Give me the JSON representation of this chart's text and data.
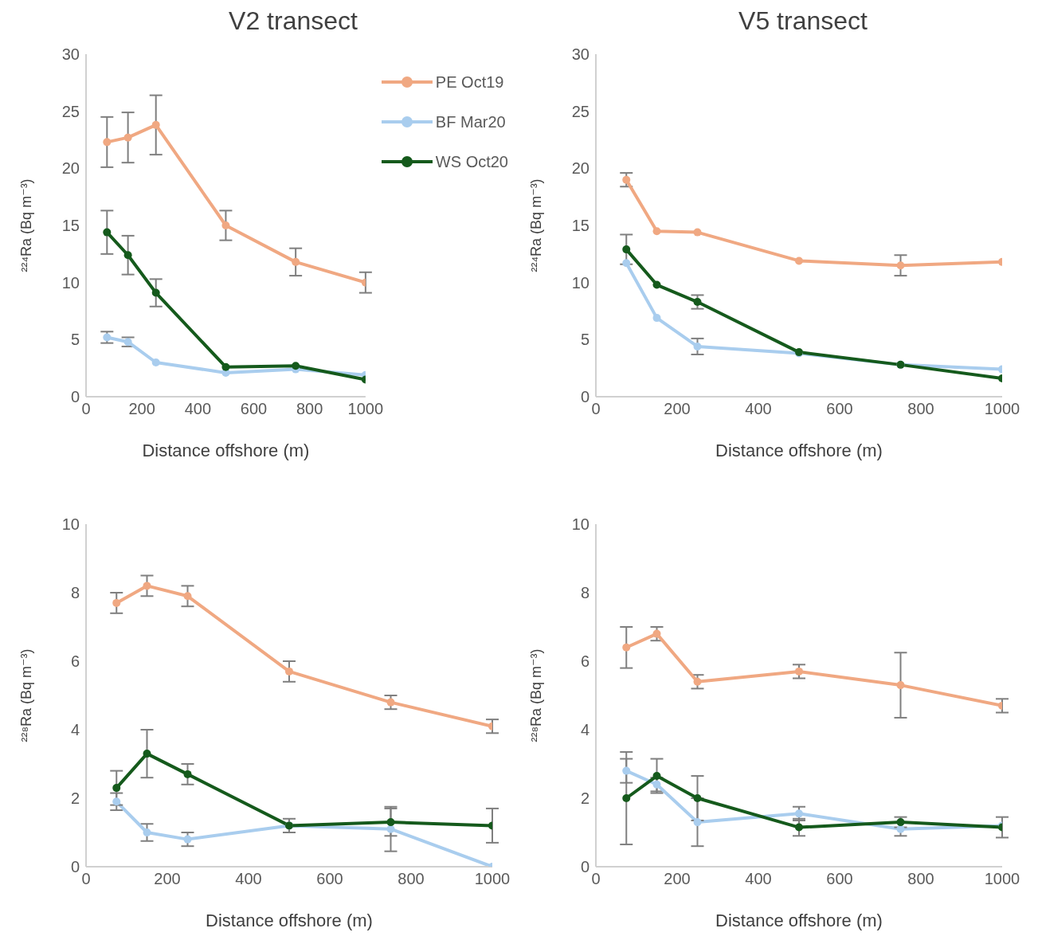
{
  "chart_data": [
    {
      "type": "line",
      "title": "V2 transect",
      "xlabel": "Distance offshore (m)",
      "ylabel": "²²⁴Ra (Bq m⁻³)",
      "x": [
        75,
        150,
        250,
        500,
        750,
        1000
      ],
      "xlim": [
        0,
        1000
      ],
      "xticks": [
        0,
        200,
        400,
        600,
        800,
        1000
      ],
      "ylim": [
        0,
        30
      ],
      "yticks": [
        0,
        5,
        10,
        15,
        20,
        25,
        30
      ],
      "marker": "circle",
      "grid": false,
      "legend": "top right",
      "series": [
        {
          "name": "PE Oct19",
          "color": "#f0a882",
          "values": [
            22.3,
            22.7,
            23.8,
            15.0,
            11.8,
            10.0
          ],
          "errors": [
            2.2,
            2.2,
            2.6,
            1.3,
            1.2,
            0.9
          ]
        },
        {
          "name": "BF Mar20",
          "color": "#a9cdee",
          "values": [
            5.2,
            4.8,
            3.0,
            2.1,
            2.4,
            1.9
          ],
          "errors": [
            0.5,
            0.4,
            null,
            null,
            null,
            null
          ]
        },
        {
          "name": "WS Oct20",
          "color": "#155a1c",
          "values": [
            14.4,
            12.4,
            9.1,
            2.6,
            2.7,
            1.5
          ],
          "errors": [
            1.9,
            1.7,
            1.2,
            null,
            null,
            null
          ]
        }
      ]
    },
    {
      "type": "line",
      "title": "V5 transect",
      "xlabel": "Distance offshore (m)",
      "ylabel": "²²⁴Ra (Bq m⁻³)",
      "x": [
        75,
        150,
        250,
        500,
        750,
        1000
      ],
      "xlim": [
        0,
        1000
      ],
      "xticks": [
        0,
        200,
        400,
        600,
        800,
        1000
      ],
      "ylim": [
        0,
        30
      ],
      "yticks": [
        0,
        5,
        10,
        15,
        20,
        25,
        30
      ],
      "marker": "circle",
      "grid": false,
      "series": [
        {
          "color": "#f0a882",
          "values": [
            19.0,
            14.5,
            14.4,
            11.9,
            11.5,
            11.8
          ],
          "errors": [
            0.6,
            null,
            null,
            null,
            0.9,
            null
          ]
        },
        {
          "color": "#a9cdee",
          "values": [
            11.7,
            6.9,
            4.4,
            3.8,
            2.8,
            2.4
          ],
          "errors": [
            null,
            null,
            0.7,
            null,
            null,
            null
          ]
        },
        {
          "color": "#155a1c",
          "values": [
            12.9,
            9.8,
            8.3,
            3.9,
            2.8,
            1.6
          ],
          "errors": [
            1.3,
            null,
            0.6,
            null,
            null,
            null
          ]
        }
      ]
    },
    {
      "type": "line",
      "xlabel": "Distance offshore (m)",
      "ylabel": "²²⁸Ra (Bq m⁻³)",
      "x": [
        75,
        150,
        250,
        500,
        750,
        1000
      ],
      "xlim": [
        0,
        1000
      ],
      "xticks": [
        0,
        200,
        400,
        600,
        800,
        1000
      ],
      "ylim": [
        0,
        10
      ],
      "yticks": [
        0,
        2,
        4,
        6,
        8,
        10
      ],
      "marker": "circle",
      "grid": false,
      "series": [
        {
          "color": "#f0a882",
          "values": [
            7.7,
            8.2,
            7.9,
            5.7,
            4.8,
            4.1
          ],
          "errors": [
            0.3,
            0.3,
            0.3,
            0.3,
            0.2,
            0.2
          ]
        },
        {
          "color": "#a9cdee",
          "values": [
            1.9,
            1.0,
            0.8,
            1.2,
            1.1,
            0
          ],
          "errors": [
            0.25,
            0.25,
            0.2,
            null,
            0.65,
            null
          ]
        },
        {
          "color": "#155a1c",
          "values": [
            2.3,
            3.3,
            2.7,
            1.2,
            1.3,
            1.2
          ],
          "errors": [
            0.5,
            0.7,
            0.3,
            0.2,
            0.4,
            0.5
          ]
        }
      ]
    },
    {
      "type": "line",
      "xlabel": "Distance offshore (m)",
      "ylabel": "²²⁸Ra (Bq m⁻³)",
      "x": [
        75,
        150,
        250,
        500,
        750,
        1000
      ],
      "xlim": [
        0,
        1000
      ],
      "xticks": [
        0,
        200,
        400,
        600,
        800,
        1000
      ],
      "ylim": [
        0,
        10
      ],
      "yticks": [
        0,
        2,
        4,
        6,
        8,
        10
      ],
      "marker": "circle",
      "grid": false,
      "series": [
        {
          "color": "#f0a882",
          "values": [
            6.4,
            6.8,
            5.4,
            5.7,
            5.3,
            4.7
          ],
          "errors": [
            0.6,
            0.2,
            0.2,
            0.2,
            0.95,
            0.2
          ]
        },
        {
          "color": "#a9cdee",
          "values": [
            2.8,
            2.4,
            1.3,
            1.55,
            1.1,
            1.2
          ],
          "errors": [
            0.35,
            0.2,
            0.7,
            0.2,
            0.2,
            null
          ]
        },
        {
          "color": "#155a1c",
          "values": [
            2.0,
            2.65,
            2.0,
            1.15,
            1.3,
            1.15
          ],
          "errors": [
            1.35,
            0.5,
            0.65,
            0.25,
            0.15,
            0.3
          ]
        }
      ]
    }
  ]
}
